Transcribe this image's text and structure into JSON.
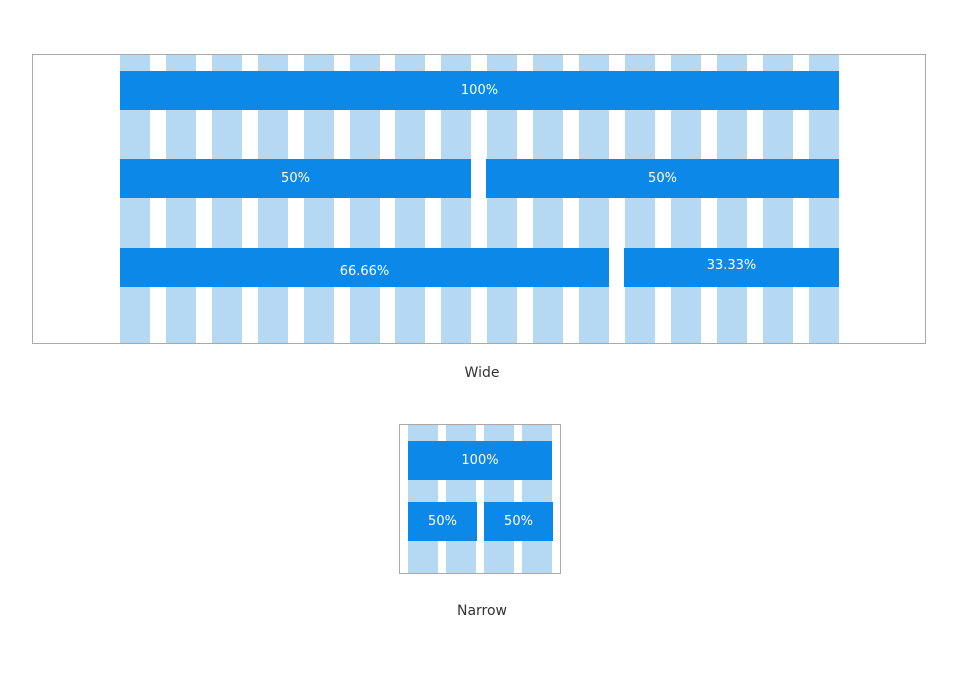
{
  "colors": {
    "column": "#b5d8f3",
    "bar": "#0b88e8",
    "bar_text": "#ffffff",
    "frame_border": "#a9a9a9"
  },
  "wide": {
    "caption": "Wide",
    "columns": 16,
    "rows": [
      {
        "cells": [
          "100%"
        ]
      },
      {
        "cells": [
          "50%",
          "50%"
        ]
      },
      {
        "cells": [
          "66.66%",
          "33.33%"
        ]
      }
    ]
  },
  "narrow": {
    "caption": "Narrow",
    "columns": 4,
    "rows": [
      {
        "cells": [
          "100%"
        ]
      },
      {
        "cells": [
          "50%",
          "50%"
        ]
      }
    ]
  }
}
